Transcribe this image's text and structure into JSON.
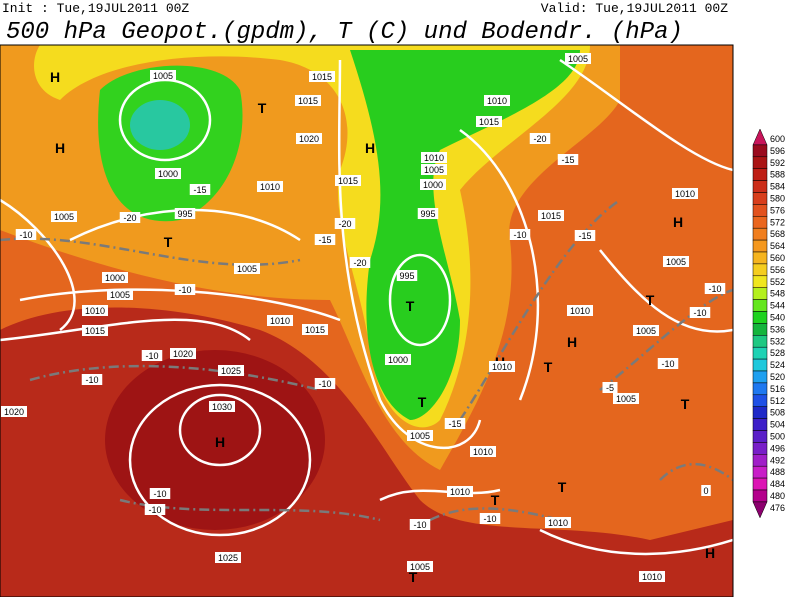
{
  "header": {
    "init": "Init : Tue,19JUL2011 00Z",
    "valid": "Valid: Tue,19JUL2011 00Z",
    "title": "500 hPa Geopot.(gpdm), T (C) und Bodendr. (hPa)"
  },
  "colorbar": {
    "labels": [
      "600",
      "596",
      "592",
      "588",
      "584",
      "580",
      "576",
      "572",
      "568",
      "564",
      "560",
      "556",
      "552",
      "548",
      "544",
      "540",
      "536",
      "532",
      "528",
      "524",
      "520",
      "516",
      "512",
      "508",
      "504",
      "500",
      "496",
      "492",
      "488",
      "484",
      "480",
      "476"
    ],
    "colors": [
      "#c8145a",
      "#9a0a1e",
      "#aa1414",
      "#be1e14",
      "#cc2d19",
      "#d83e1c",
      "#e2521e",
      "#ea661e",
      "#f07e1e",
      "#f4981e",
      "#f5b41e",
      "#f5cd1e",
      "#f0e61e",
      "#b4f01e",
      "#64e61e",
      "#1ed21e",
      "#14b43c",
      "#1ec882",
      "#1ed2b4",
      "#1ec8dc",
      "#1ea0f0",
      "#1e78f0",
      "#1e50e6",
      "#1e28c8",
      "#3c1ec8",
      "#5a1ec8",
      "#781ec8",
      "#a01ec8",
      "#c81ec8",
      "#dc14b4",
      "#b4008c",
      "#8c006e"
    ]
  },
  "map": {
    "labels": [
      "H",
      "H",
      "H",
      "H",
      "H",
      "H",
      "H",
      "H",
      "T",
      "T",
      "T",
      "T",
      "T",
      "T",
      "T",
      "T",
      "T",
      "T",
      "1005",
      "1015",
      "1015",
      "1020",
      "1000",
      "995",
      "1010",
      "1015",
      "1010",
      "1005",
      "1000",
      "995",
      "995",
      "1000",
      "1005",
      "1010",
      "1025",
      "1030",
      "1020",
      "1025",
      "1005",
      "1010",
      "1010",
      "1010",
      "1005",
      "1005",
      "1015",
      "1010",
      "1005",
      "1010",
      "1015",
      "1005",
      "1020",
      "1010",
      "1015",
      "1000",
      "1005",
      "1005",
      "1005",
      "1010",
      "1015",
      "1010",
      "1010",
      "-10",
      "-15",
      "-20",
      "-15",
      "-20",
      "-15",
      "-10",
      "-10",
      "-10",
      "-10",
      "-10",
      "-15",
      "-10",
      "-15",
      "-20",
      "-10",
      "-10",
      "-5",
      "-10",
      "-10",
      "-10",
      "0",
      "-10",
      "-20"
    ]
  }
}
